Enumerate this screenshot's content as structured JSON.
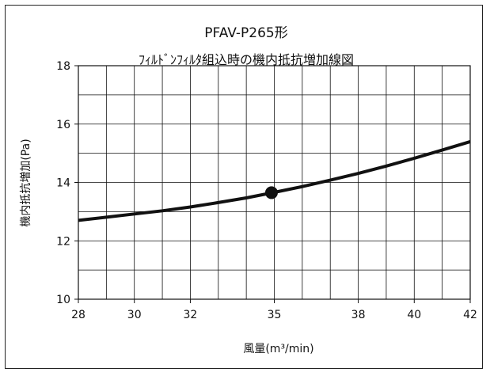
{
  "chart_data": {
    "type": "line",
    "title": "PFAV-P265形",
    "subtitle": "ﾌｨﾙﾄﾞﾝﾌｨﾙﾀ組込時の機内抵抗増加線図",
    "xlabel": "風量(m³/min)",
    "ylabel": "機内抵抗増加(Pa)",
    "xlim": [
      28,
      42
    ],
    "ylim": [
      10,
      18
    ],
    "x_ticks": [
      28,
      30,
      32,
      35,
      38,
      40,
      42
    ],
    "y_ticks": [
      10,
      12,
      14,
      16,
      18
    ],
    "grid": true,
    "series": [
      {
        "x": [
          28,
          29,
          30,
          31,
          32,
          33,
          34,
          35,
          36,
          37,
          38,
          39,
          40,
          41,
          42
        ],
        "y": [
          12.7,
          12.81,
          12.92,
          13.03,
          13.16,
          13.31,
          13.47,
          13.66,
          13.86,
          14.08,
          14.31,
          14.56,
          14.83,
          15.11,
          15.4
        ]
      }
    ],
    "marker": {
      "x": 34.9,
      "y": 13.65
    },
    "colors": {
      "line": "#111111",
      "grid": "#111111",
      "marker": "#111111"
    }
  }
}
